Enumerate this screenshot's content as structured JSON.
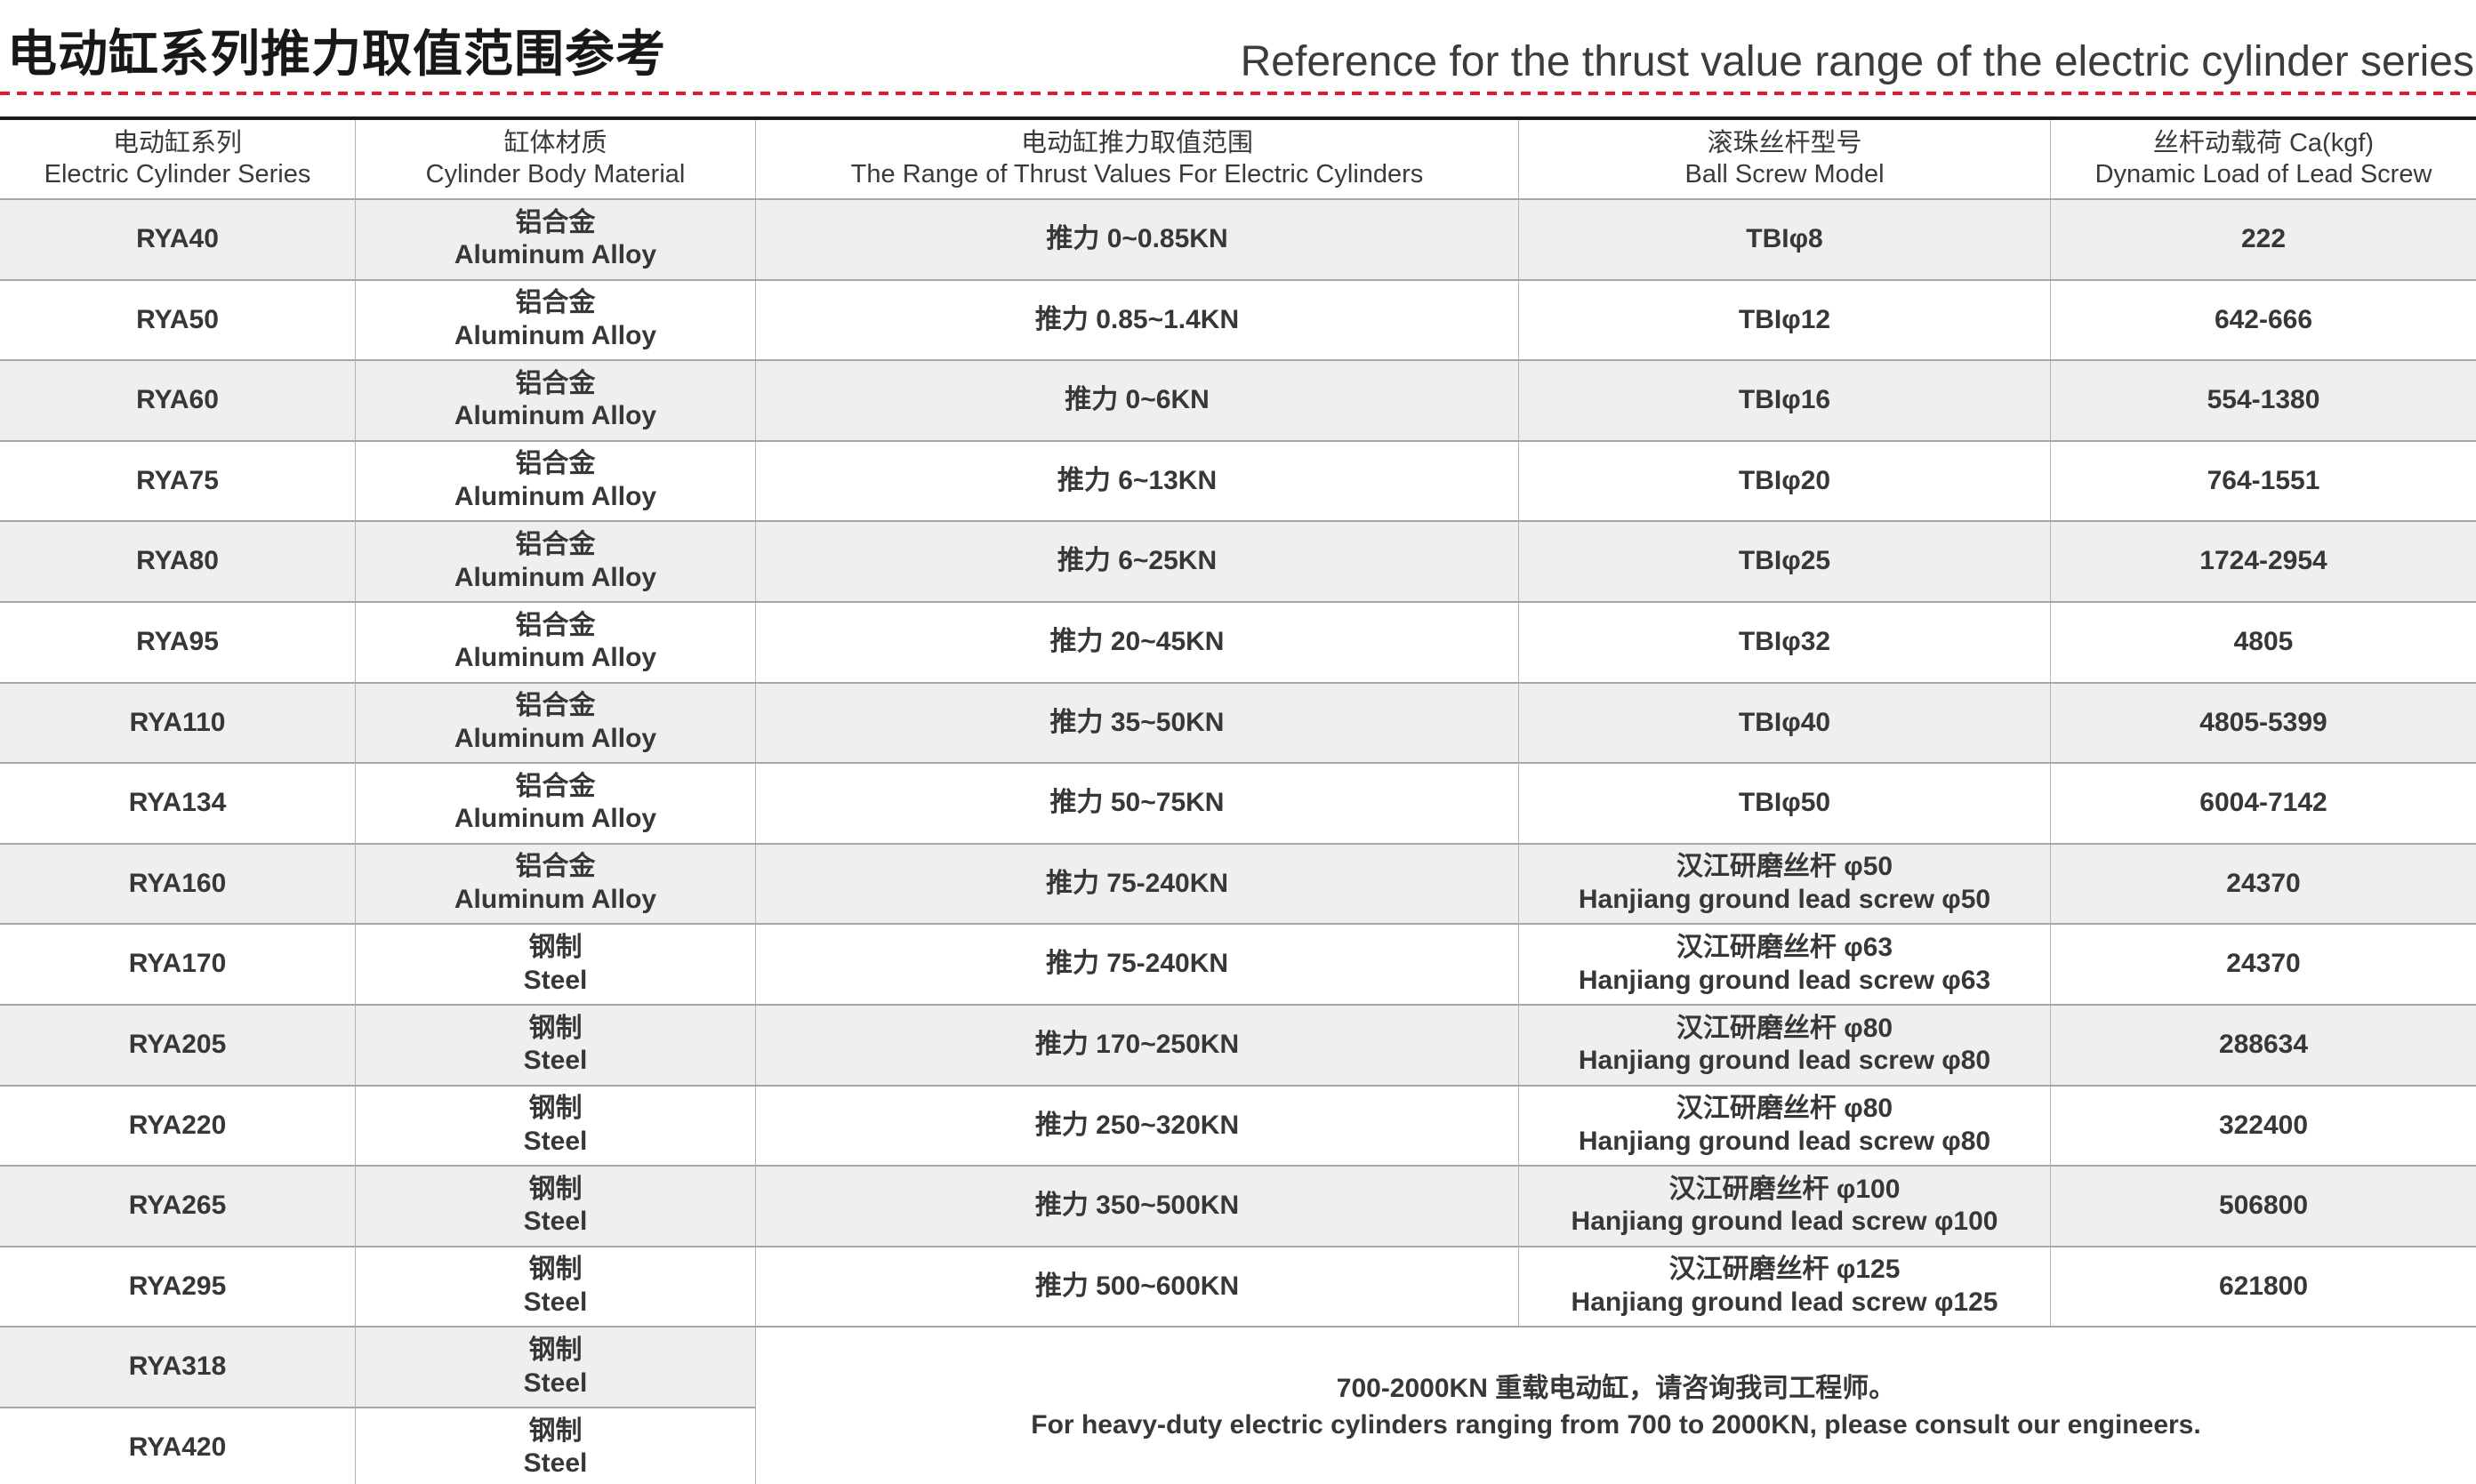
{
  "page": {
    "title_zh": "电动缸系列推力取值范围参考",
    "title_en": "Reference for the thrust value range of the electric cylinder series"
  },
  "colors": {
    "accent_red": "#e4172e",
    "alt_row_bg": "#efefef",
    "grid_line_gray": "#a6a6a6",
    "table_top_border": "#1a1a1a",
    "text": "#373737"
  },
  "table": {
    "columns": [
      {
        "zh": "电动缸系列",
        "en": "Electric Cylinder Series"
      },
      {
        "zh": "缸体材质",
        "en": "Cylinder Body Material"
      },
      {
        "zh": "电动缸推力取值范围",
        "en": "The Range of Thrust Values For Electric Cylinders"
      },
      {
        "zh": "滚珠丝杆型号",
        "en": "Ball Screw Model"
      },
      {
        "zh": "丝杆动载荷 Ca(kgf)",
        "en": "Dynamic Load of Lead Screw"
      }
    ],
    "rows": [
      {
        "series": "RYA40",
        "material_zh": "铝合金",
        "material_en": "Aluminum Alloy",
        "thrust": "推力 0~0.85KN",
        "screw_zh": "TBIφ8",
        "screw_en": "",
        "load": "222"
      },
      {
        "series": "RYA50",
        "material_zh": "铝合金",
        "material_en": "Aluminum Alloy",
        "thrust": "推力 0.85~1.4KN",
        "screw_zh": "TBIφ12",
        "screw_en": "",
        "load": "642-666"
      },
      {
        "series": "RYA60",
        "material_zh": "铝合金",
        "material_en": "Aluminum Alloy",
        "thrust": "推力 0~6KN",
        "screw_zh": "TBIφ16",
        "screw_en": "",
        "load": "554-1380"
      },
      {
        "series": "RYA75",
        "material_zh": "铝合金",
        "material_en": "Aluminum Alloy",
        "thrust": "推力 6~13KN",
        "screw_zh": "TBIφ20",
        "screw_en": "",
        "load": "764-1551"
      },
      {
        "series": "RYA80",
        "material_zh": "铝合金",
        "material_en": "Aluminum Alloy",
        "thrust": "推力 6~25KN",
        "screw_zh": "TBIφ25",
        "screw_en": "",
        "load": "1724-2954"
      },
      {
        "series": "RYA95",
        "material_zh": "铝合金",
        "material_en": "Aluminum Alloy",
        "thrust": "推力 20~45KN",
        "screw_zh": "TBIφ32",
        "screw_en": "",
        "load": "4805"
      },
      {
        "series": "RYA110",
        "material_zh": "铝合金",
        "material_en": "Aluminum Alloy",
        "thrust": "推力 35~50KN",
        "screw_zh": "TBIφ40",
        "screw_en": "",
        "load": "4805-5399"
      },
      {
        "series": "RYA134",
        "material_zh": "铝合金",
        "material_en": "Aluminum Alloy",
        "thrust": "推力 50~75KN",
        "screw_zh": "TBIφ50",
        "screw_en": "",
        "load": "6004-7142"
      },
      {
        "series": "RYA160",
        "material_zh": "铝合金",
        "material_en": "Aluminum Alloy",
        "thrust": "推力 75-240KN",
        "screw_zh": "汉江研磨丝杆 φ50",
        "screw_en": "Hanjiang ground lead screw φ50",
        "load": "24370"
      },
      {
        "series": "RYA170",
        "material_zh": "钢制",
        "material_en": "Steel",
        "thrust": "推力 75-240KN",
        "screw_zh": "汉江研磨丝杆 φ63",
        "screw_en": "Hanjiang ground lead screw φ63",
        "load": "24370"
      },
      {
        "series": "RYA205",
        "material_zh": "钢制",
        "material_en": "Steel",
        "thrust": "推力 170~250KN",
        "screw_zh": "汉江研磨丝杆 φ80",
        "screw_en": "Hanjiang ground lead screw φ80",
        "load": "288634"
      },
      {
        "series": "RYA220",
        "material_zh": "钢制",
        "material_en": "Steel",
        "thrust": "推力 250~320KN",
        "screw_zh": "汉江研磨丝杆 φ80",
        "screw_en": "Hanjiang ground lead screw φ80",
        "load": "322400"
      },
      {
        "series": "RYA265",
        "material_zh": "钢制",
        "material_en": "Steel",
        "thrust": "推力 350~500KN",
        "screw_zh": "汉江研磨丝杆 φ100",
        "screw_en": "Hanjiang ground lead screw φ100",
        "load": "506800"
      },
      {
        "series": "RYA295",
        "material_zh": "钢制",
        "material_en": "Steel",
        "thrust": "推力 500~600KN",
        "screw_zh": "汉江研磨丝杆 φ125",
        "screw_en": "Hanjiang ground lead screw φ125",
        "load": "621800"
      },
      {
        "series": "RYA318",
        "material_zh": "钢制",
        "material_en": "Steel",
        "note_span": true
      },
      {
        "series": "RYA420",
        "material_zh": "钢制",
        "material_en": "Steel",
        "note_span": true
      }
    ],
    "note_zh": "700-2000KN 重载电动缸，请咨询我司工程师。",
    "note_en": "For heavy-duty electric cylinders ranging from 700 to 2000KN, please consult our engineers."
  }
}
